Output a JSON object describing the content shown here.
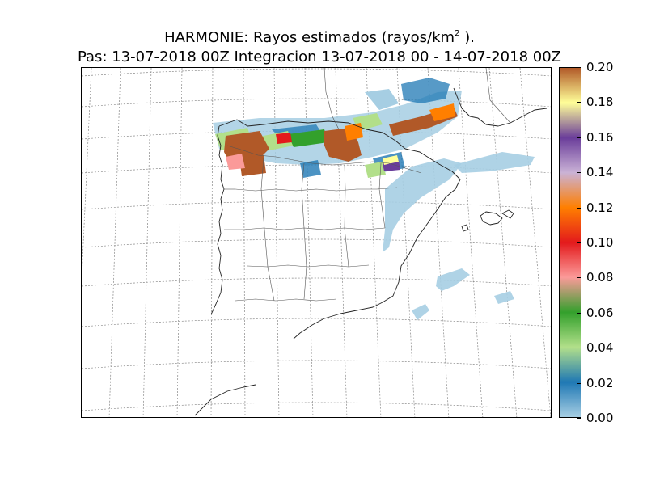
{
  "figure": {
    "title_prefix": "HARMONIE: Rayos estimados  (rayos/km",
    "title_exponent": "2",
    "title_suffix": " ).",
    "subtitle": "Pas: 13-07-2018 00Z Integracion 13-07-2018 00 - 14-07-2018 00Z"
  },
  "colorbar": {
    "range": [
      0.0,
      0.2
    ],
    "tick_labels": [
      "0.00",
      "0.02",
      "0.04",
      "0.06",
      "0.08",
      "0.10",
      "0.12",
      "0.14",
      "0.16",
      "0.18",
      "0.20"
    ],
    "color_stops": [
      {
        "value": 0.0,
        "color": "#a6cee3"
      },
      {
        "value": 0.02,
        "color": "#1f78b4"
      },
      {
        "value": 0.04,
        "color": "#b2df8a"
      },
      {
        "value": 0.06,
        "color": "#33a02c"
      },
      {
        "value": 0.08,
        "color": "#fb9a99"
      },
      {
        "value": 0.1,
        "color": "#e31a1c"
      },
      {
        "value": 0.12,
        "color": "#ff7f00"
      },
      {
        "value": 0.14,
        "color": "#cab2d6"
      },
      {
        "value": 0.16,
        "color": "#6a3d9a"
      },
      {
        "value": 0.18,
        "color": "#ffff99"
      },
      {
        "value": 0.2,
        "color": "#b15928"
      }
    ]
  },
  "colors": {
    "coastline": "#222222",
    "border": "#555555",
    "graticule": "#888888"
  }
}
